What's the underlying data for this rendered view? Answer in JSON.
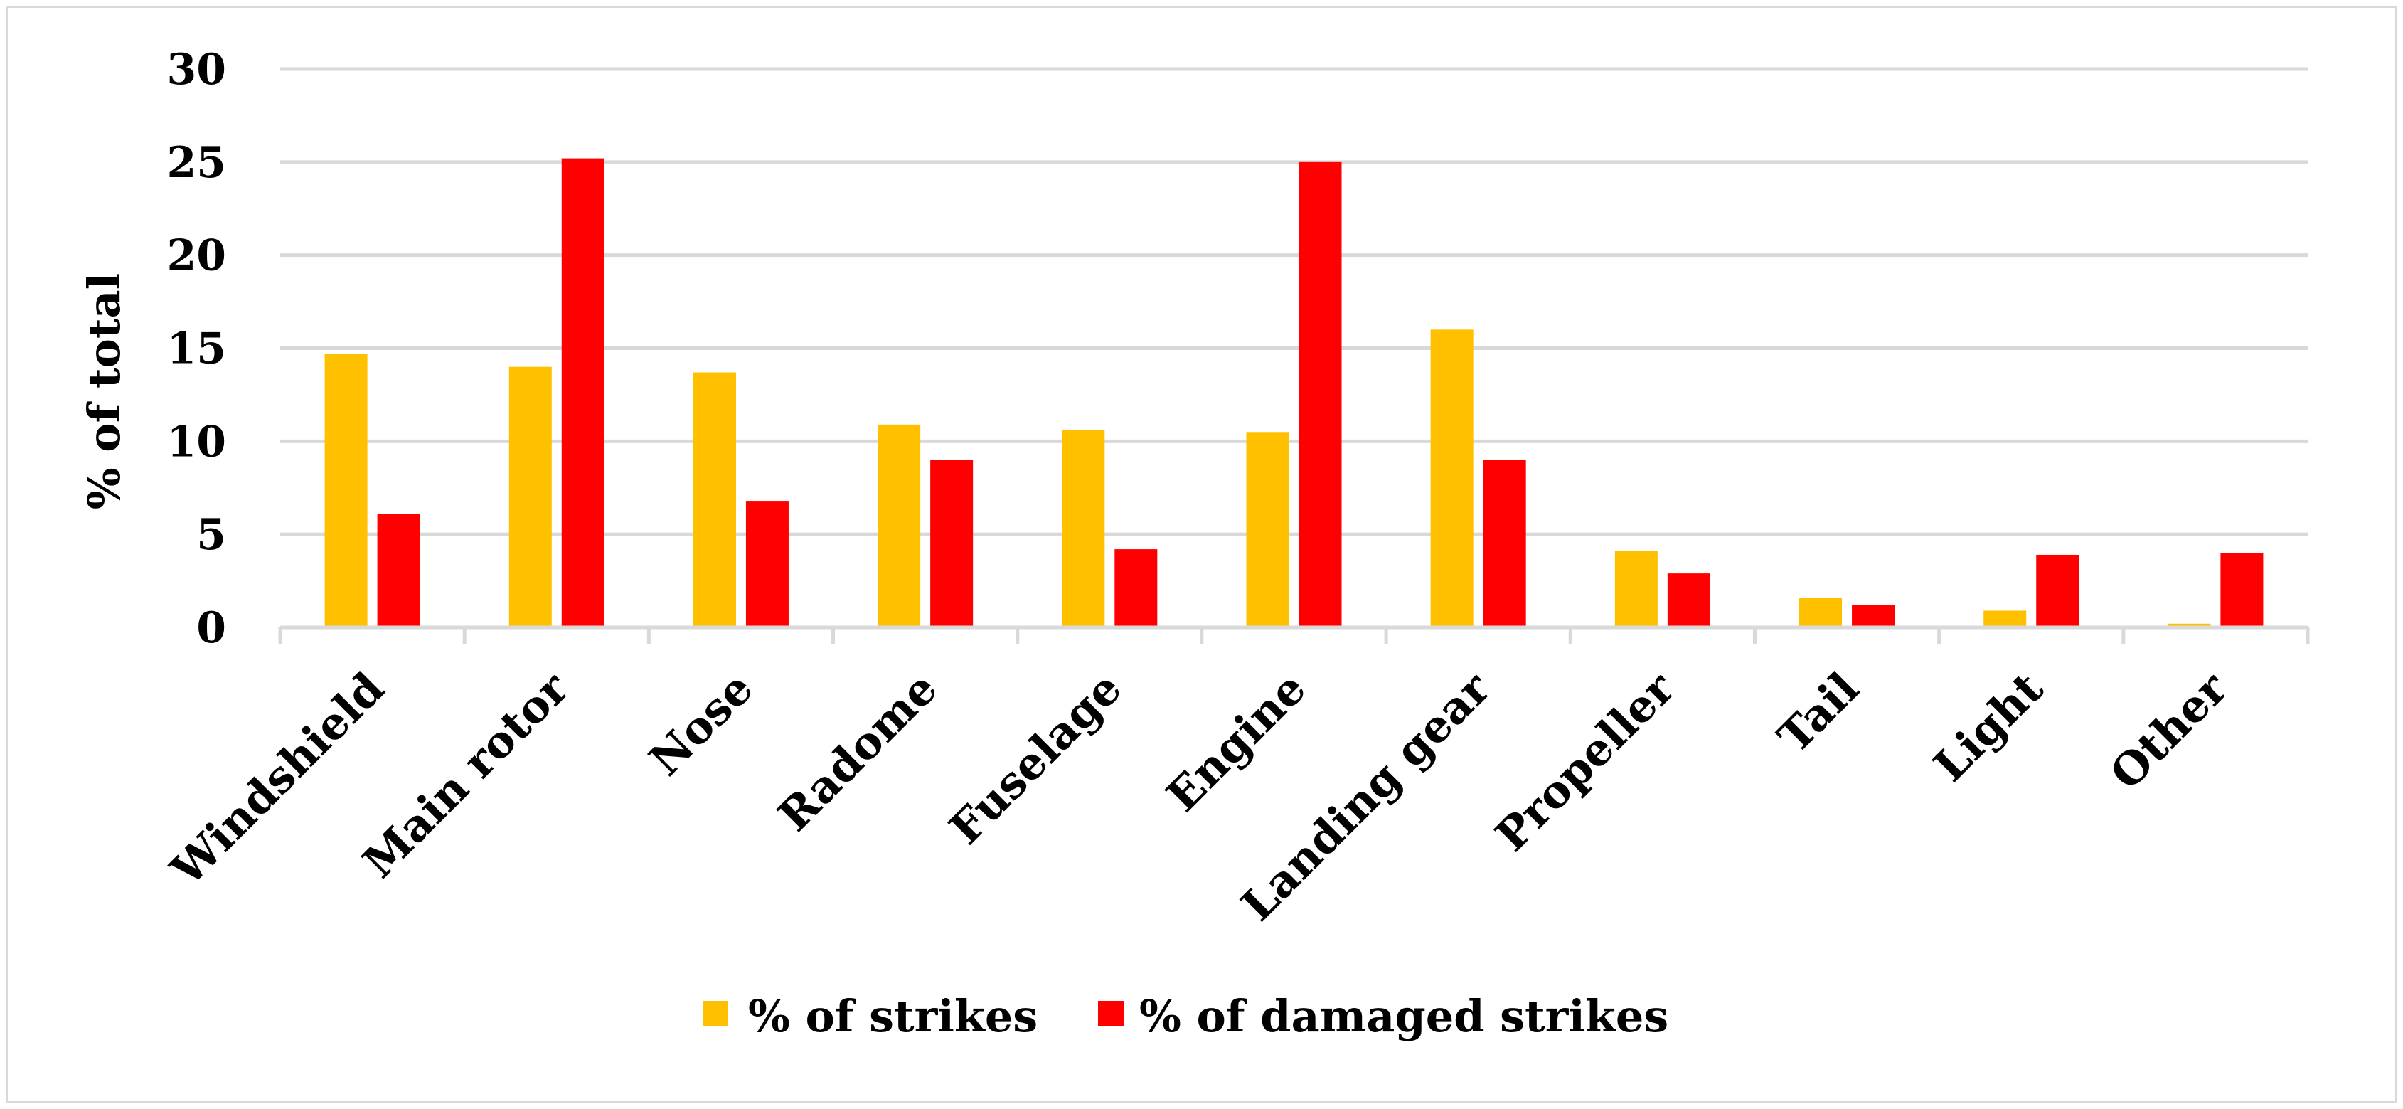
{
  "chart_data": {
    "type": "bar",
    "categories": [
      "Windshield",
      "Main rotor",
      "Nose",
      "Radome",
      "Fuselage",
      "Engine",
      "Landing gear",
      "Propeller",
      "Tail",
      "Light",
      "Other"
    ],
    "series": [
      {
        "name": "% of strikes",
        "color": "#ffc000",
        "values": [
          14.7,
          14.0,
          13.7,
          10.9,
          10.6,
          10.5,
          16.0,
          4.1,
          1.6,
          0.9,
          0.2
        ]
      },
      {
        "name": "% of damaged strikes",
        "color": "#ff0000",
        "values": [
          6.1,
          25.2,
          6.8,
          9.0,
          4.2,
          25.0,
          9.0,
          2.9,
          1.2,
          3.9,
          4.0
        ]
      }
    ],
    "title": "",
    "xlabel": "",
    "ylabel": "% of total",
    "ylim": [
      0,
      30
    ],
    "yticks": [
      0,
      5,
      10,
      15,
      20,
      25,
      30
    ],
    "grid": true,
    "legend": "bottom"
  }
}
